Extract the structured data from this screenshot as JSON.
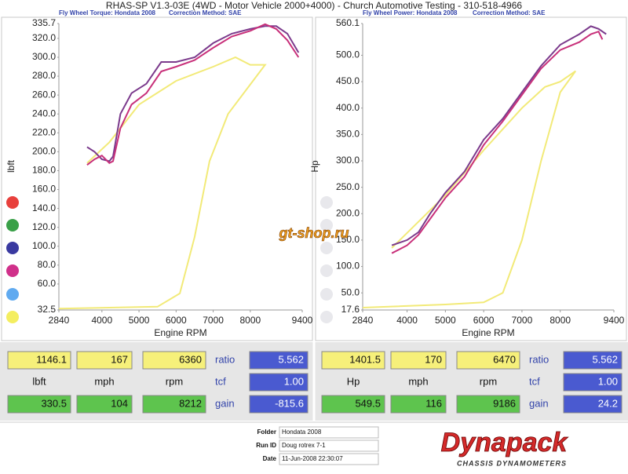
{
  "header": {
    "title": "RHAS-SP V1.3-03E  (4WD - Motor Vehicle 2000+4000) - Church Automotive Testing - 310-518-4966"
  },
  "chart_data": [
    {
      "type": "line",
      "subtitle": "Fly Wheel Torque: Hondata 2008",
      "correction": "Correction Method: SAE",
      "x_label": "Engine RPM",
      "y_label": "lbft",
      "xlim": [
        2840,
        9400
      ],
      "xticks": [
        2840,
        4000,
        5000,
        6000,
        7000,
        8000,
        9400
      ],
      "ylim": [
        32.5,
        335.7
      ],
      "yticks": [
        32.5,
        {
          "value": 60,
          "label": "60.0"
        },
        {
          "value": 80,
          "label": "80.0"
        },
        {
          "value": 100,
          "label": "100.0"
        },
        {
          "value": 120,
          "label": "120.0"
        },
        {
          "value": 140,
          "label": "140.0"
        },
        {
          "value": 160,
          "label": "160.0"
        },
        {
          "value": 180,
          "label": "180.0"
        },
        {
          "value": 200,
          "label": "200.0"
        },
        {
          "value": 220,
          "label": "220.0"
        },
        {
          "value": 240,
          "label": "240.0"
        },
        {
          "value": 260,
          "label": "260.0"
        },
        {
          "value": 280,
          "label": "280.0"
        },
        {
          "value": 300,
          "label": "300.0"
        },
        {
          "value": 320,
          "label": "320.0"
        },
        335.7
      ],
      "series": [
        {
          "color": "#f2ea78",
          "x": [
            3600,
            4200,
            5000,
            6000,
            7000,
            7600,
            8000,
            8400,
            7400,
            6900,
            6500,
            6100,
            5500,
            2840
          ],
          "values": [
            188,
            210,
            250,
            275,
            290,
            300,
            292,
            292,
            240,
            190,
            110,
            50,
            36,
            34
          ]
        },
        {
          "color": "#7b3a8c",
          "x": [
            3600,
            3800,
            4000,
            4200,
            4300,
            4500,
            4800,
            5200,
            5600,
            6000,
            6500,
            7000,
            7500,
            8000,
            8400,
            8700,
            9000,
            9300
          ],
          "values": [
            205,
            200,
            192,
            190,
            195,
            240,
            262,
            272,
            295,
            295,
            300,
            315,
            325,
            330,
            333,
            333,
            325,
            305
          ]
        },
        {
          "color": "#c8307a",
          "x": [
            3600,
            3800,
            4000,
            4200,
            4300,
            4500,
            4800,
            5200,
            5600,
            6000,
            6500,
            7000,
            7500,
            8000,
            8400,
            8700,
            9000,
            9300
          ],
          "values": [
            186,
            192,
            196,
            188,
            190,
            225,
            250,
            262,
            285,
            290,
            297,
            310,
            322,
            328,
            335,
            330,
            318,
            300
          ]
        }
      ]
    },
    {
      "type": "line",
      "subtitle": "Fly Wheel Power: Hondata 2008",
      "correction": "Correction Method: SAE",
      "x_label": "Engine RPM",
      "y_label": "Hp",
      "xlim": [
        2840,
        9400
      ],
      "xticks": [
        2840,
        4000,
        5000,
        6000,
        7000,
        8000,
        9400
      ],
      "ylim": [
        17.6,
        560.1
      ],
      "yticks": [
        17.6,
        {
          "value": 50,
          "label": "50.0"
        },
        {
          "value": 100,
          "label": "100.0"
        },
        {
          "value": 150,
          "label": "150.0"
        },
        {
          "value": 200,
          "label": "200.0"
        },
        {
          "value": 250,
          "label": "250.0"
        },
        {
          "value": 300,
          "label": "300.0"
        },
        {
          "value": 350,
          "label": "350.0"
        },
        {
          "value": 400,
          "label": "400.0"
        },
        {
          "value": 450,
          "label": "450.0"
        },
        {
          "value": 500,
          "label": "500.0"
        },
        560.1
      ],
      "series": [
        {
          "color": "#f2ea78",
          "x": [
            3600,
            5000,
            6000,
            7000,
            7600,
            8000,
            8400,
            8000,
            7500,
            7000,
            6500,
            6000,
            5000,
            2840
          ],
          "values": [
            135,
            235,
            320,
            400,
            440,
            450,
            470,
            430,
            300,
            150,
            50,
            32,
            28,
            22
          ]
        },
        {
          "color": "#7b3a8c",
          "x": [
            3600,
            4000,
            4300,
            4600,
            5000,
            5500,
            6000,
            6500,
            7000,
            7500,
            8000,
            8500,
            8800,
            9000,
            9200
          ],
          "values": [
            140,
            150,
            165,
            200,
            240,
            280,
            340,
            380,
            430,
            480,
            520,
            540,
            555,
            550,
            540
          ]
        },
        {
          "color": "#c8307a",
          "x": [
            3600,
            4000,
            4300,
            4600,
            5000,
            5500,
            6000,
            6500,
            7000,
            7500,
            8000,
            8500,
            8800,
            9000,
            9100
          ],
          "values": [
            125,
            140,
            160,
            190,
            230,
            270,
            330,
            375,
            425,
            475,
            510,
            525,
            540,
            545,
            530
          ]
        }
      ]
    }
  ],
  "panels": [
    {
      "readouts": [
        [
          "1146.1",
          "167",
          "6360"
        ],
        [
          "lbft",
          "mph",
          "rpm"
        ],
        [
          "330.5",
          "104",
          "8212"
        ]
      ],
      "params": [
        [
          "ratio",
          "5.562"
        ],
        [
          "tcf",
          "1.00"
        ],
        [
          "gain",
          "-815.6"
        ]
      ]
    },
    {
      "readouts": [
        [
          "1401.5",
          "170",
          "6470"
        ],
        [
          "Hp",
          "mph",
          "rpm"
        ],
        [
          "549.5",
          "116",
          "9186"
        ]
      ],
      "params": [
        [
          "ratio",
          "5.562"
        ],
        [
          "tcf",
          "1.00"
        ],
        [
          "gain",
          "24.2"
        ]
      ]
    }
  ],
  "watermark": "gt-shop.ru",
  "footer": {
    "fields": [
      {
        "label": "Folder",
        "value": "Hondata 2008"
      },
      {
        "label": "Run ID",
        "value": "Doug rotrex 7-1"
      },
      {
        "label": "Date",
        "value": "11-Jun-2008 22:30:07"
      }
    ],
    "logo": "Dynapack",
    "logo_sub": "CHASSIS DYNAMOMETERS"
  }
}
